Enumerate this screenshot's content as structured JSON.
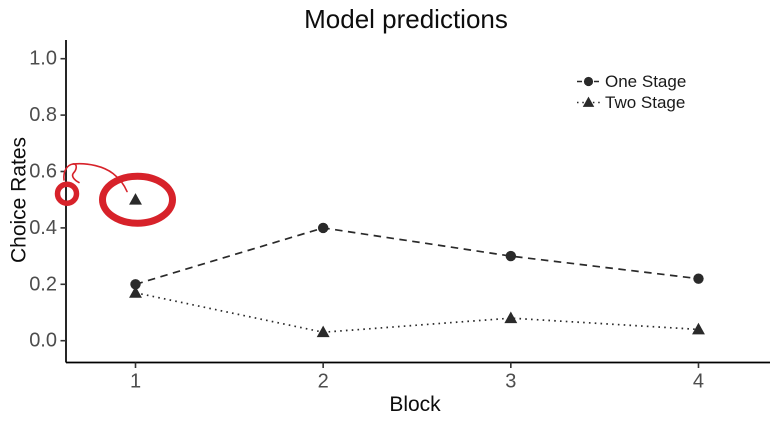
{
  "figure": {
    "title": "Model predictions",
    "x_axis_label": "Block",
    "y_axis_label": "Choice Rates"
  },
  "legend": {
    "items": [
      {
        "label": "One Stage",
        "marker": "circle-icon",
        "linestyle": "dashed"
      },
      {
        "label": "Two Stage",
        "marker": "triangle-icon",
        "linestyle": "dotted"
      }
    ]
  },
  "chart_data": {
    "type": "line",
    "title": "Model predictions",
    "xlabel": "Block",
    "ylabel": "Choice Rates",
    "categories": [
      1,
      2,
      3,
      4
    ],
    "x_tick_labels": [
      "1",
      "2",
      "3",
      "4"
    ],
    "y_tick_labels": [
      "0.0",
      "0.2",
      "0.4",
      "0.6",
      "0.8",
      "1.0"
    ],
    "ylim": [
      0,
      1.07
    ],
    "grid": false,
    "legend_position": "upper-right-inside",
    "series": [
      {
        "name": "One Stage",
        "marker": "circle",
        "linestyle": "dashed",
        "values": [
          0.2,
          0.4,
          0.3,
          0.22
        ]
      },
      {
        "name": "Two Stage",
        "marker": "triangle",
        "linestyle": "dotted",
        "values": [
          0.17,
          0.03,
          0.08,
          0.04
        ]
      }
    ],
    "extra_points": [
      {
        "style_of": "Two Stage",
        "marker": "triangle",
        "x": 1,
        "y": 0.5
      }
    ],
    "annotations": {
      "color": "#d7222a",
      "shapes": [
        {
          "kind": "ellipse-highlight",
          "around_point": {
            "x": 1,
            "y": 0.5
          }
        },
        {
          "kind": "small-circle-highlight",
          "on": "y-axis at 0.5"
        },
        {
          "kind": "freehand-arrow",
          "from": "y-axis circle",
          "to": "circled triangle point"
        }
      ]
    }
  },
  "colors": {
    "background": "#ffffff",
    "series_ink": "#2a2a2a",
    "axis_line": "#000000",
    "tick_label": "#4d4d4d",
    "annotation_red": "#d7222a"
  }
}
